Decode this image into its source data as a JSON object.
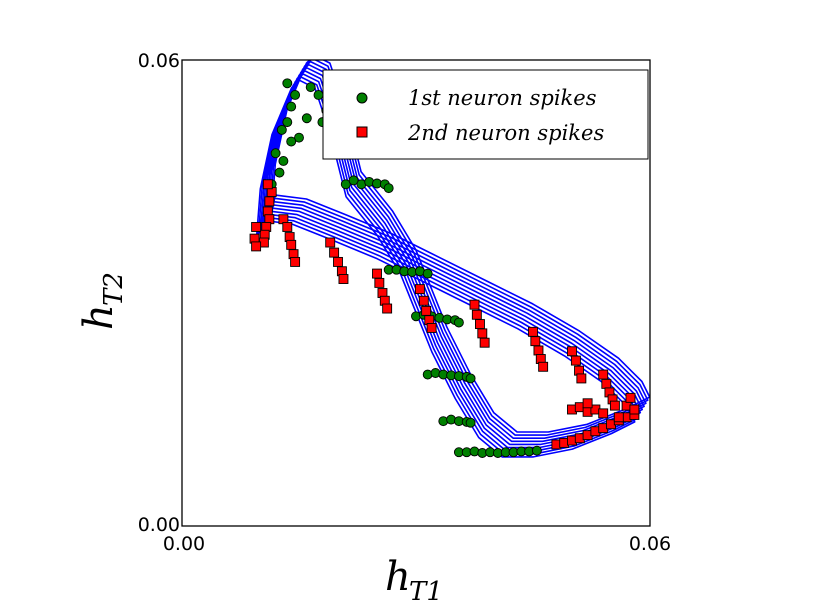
{
  "chart_data": {
    "type": "line",
    "xlabel": {
      "main": "h",
      "sub": "T1"
    },
    "ylabel": {
      "main": "h",
      "sub": "T2"
    },
    "xlim": [
      0.0,
      0.06
    ],
    "ylim": [
      0.0,
      0.06
    ],
    "x_ticks": [
      "0.00",
      "0.06"
    ],
    "y_ticks": [
      "0.00",
      "0.06"
    ],
    "grid": false,
    "legend_position": "top-right",
    "trajectory": {
      "color": "#0000ff",
      "description": "dense bundle of overlapping closed orbits",
      "loop": [
        [
          0.0105,
          0.0385
        ],
        [
          0.011,
          0.045
        ],
        [
          0.0125,
          0.052
        ],
        [
          0.015,
          0.058
        ],
        [
          0.016,
          0.059
        ],
        [
          0.018,
          0.058
        ],
        [
          0.02,
          0.052
        ],
        [
          0.022,
          0.044
        ],
        [
          0.026,
          0.039
        ],
        [
          0.029,
          0.034
        ],
        [
          0.031,
          0.029
        ],
        [
          0.033,
          0.024
        ],
        [
          0.036,
          0.018
        ],
        [
          0.039,
          0.013
        ],
        [
          0.042,
          0.0105
        ],
        [
          0.046,
          0.0105
        ],
        [
          0.051,
          0.0115
        ],
        [
          0.056,
          0.0135
        ],
        [
          0.059,
          0.015
        ],
        [
          0.058,
          0.017
        ],
        [
          0.055,
          0.02
        ],
        [
          0.05,
          0.0235
        ],
        [
          0.044,
          0.027
        ],
        [
          0.038,
          0.03
        ],
        [
          0.032,
          0.033
        ],
        [
          0.026,
          0.036
        ],
        [
          0.02,
          0.0385
        ],
        [
          0.015,
          0.0405
        ],
        [
          0.011,
          0.041
        ],
        [
          0.0105,
          0.0385
        ]
      ],
      "band_offsets": [
        -0.0016,
        -0.0012,
        -0.0008,
        -0.0004,
        0.0,
        0.0004,
        0.0008,
        0.0012,
        0.0016
      ]
    },
    "series": [
      {
        "name": "1st neuron spikes",
        "marker": "circle",
        "color": "#008000",
        "points": [
          [
            0.0135,
            0.057
          ],
          [
            0.014,
            0.054
          ],
          [
            0.0135,
            0.052
          ],
          [
            0.015,
            0.05
          ],
          [
            0.013,
            0.047
          ],
          [
            0.014,
            0.0495
          ],
          [
            0.016,
            0.0525
          ],
          [
            0.0175,
            0.0555
          ],
          [
            0.0185,
            0.0535
          ],
          [
            0.02,
            0.05
          ],
          [
            0.0205,
            0.0485
          ],
          [
            0.019,
            0.0545
          ],
          [
            0.0165,
            0.0565
          ],
          [
            0.0145,
            0.0555
          ],
          [
            0.0125,
            0.0455
          ],
          [
            0.0115,
            0.044
          ],
          [
            0.012,
            0.048
          ],
          [
            0.0128,
            0.051
          ],
          [
            0.021,
            0.049
          ],
          [
            0.0215,
            0.0478
          ],
          [
            0.0205,
            0.0515
          ],
          [
            0.018,
            0.052
          ],
          [
            0.021,
            0.044
          ],
          [
            0.022,
            0.0445
          ],
          [
            0.023,
            0.044
          ],
          [
            0.024,
            0.0443
          ],
          [
            0.025,
            0.0441
          ],
          [
            0.026,
            0.044
          ],
          [
            0.0265,
            0.0435
          ],
          [
            0.0265,
            0.033
          ],
          [
            0.0275,
            0.033
          ],
          [
            0.0285,
            0.0328
          ],
          [
            0.0295,
            0.0327
          ],
          [
            0.0305,
            0.0328
          ],
          [
            0.0315,
            0.0325
          ],
          [
            0.03,
            0.027
          ],
          [
            0.031,
            0.0272
          ],
          [
            0.032,
            0.027
          ],
          [
            0.033,
            0.0268
          ],
          [
            0.034,
            0.0266
          ],
          [
            0.035,
            0.0265
          ],
          [
            0.0355,
            0.0262
          ],
          [
            0.0315,
            0.0195
          ],
          [
            0.0325,
            0.0197
          ],
          [
            0.0335,
            0.0195
          ],
          [
            0.0345,
            0.0194
          ],
          [
            0.0355,
            0.0193
          ],
          [
            0.0365,
            0.0192
          ],
          [
            0.037,
            0.019
          ],
          [
            0.0335,
            0.0135
          ],
          [
            0.0345,
            0.0137
          ],
          [
            0.0355,
            0.0135
          ],
          [
            0.0365,
            0.0134
          ],
          [
            0.037,
            0.0133
          ],
          [
            0.0355,
            0.0095
          ],
          [
            0.0365,
            0.0095
          ],
          [
            0.0375,
            0.0096
          ],
          [
            0.0385,
            0.0094
          ],
          [
            0.0395,
            0.0095
          ],
          [
            0.0405,
            0.0094
          ],
          [
            0.0415,
            0.0095
          ],
          [
            0.0425,
            0.0095
          ],
          [
            0.0435,
            0.0096
          ],
          [
            0.0445,
            0.0096
          ],
          [
            0.0455,
            0.0097
          ]
        ]
      },
      {
        "name": "2nd neuron spikes",
        "marker": "square",
        "color": "#ff0000",
        "points": [
          [
            0.0115,
            0.043
          ],
          [
            0.0112,
            0.0418
          ],
          [
            0.011,
            0.0405
          ],
          [
            0.0112,
            0.0395
          ],
          [
            0.0108,
            0.0385
          ],
          [
            0.0106,
            0.0375
          ],
          [
            0.0105,
            0.0365
          ],
          [
            0.011,
            0.044
          ],
          [
            0.0095,
            0.0385
          ],
          [
            0.0093,
            0.037
          ],
          [
            0.0095,
            0.036
          ],
          [
            0.013,
            0.0395
          ],
          [
            0.0135,
            0.0385
          ],
          [
            0.0138,
            0.0372
          ],
          [
            0.014,
            0.0362
          ],
          [
            0.0143,
            0.035
          ],
          [
            0.0145,
            0.034
          ],
          [
            0.019,
            0.0365
          ],
          [
            0.0195,
            0.0352
          ],
          [
            0.02,
            0.034
          ],
          [
            0.0205,
            0.0328
          ],
          [
            0.0207,
            0.0318
          ],
          [
            0.025,
            0.0325
          ],
          [
            0.0253,
            0.0313
          ],
          [
            0.0257,
            0.03
          ],
          [
            0.026,
            0.029
          ],
          [
            0.0263,
            0.028
          ],
          [
            0.0305,
            0.0305
          ],
          [
            0.031,
            0.029
          ],
          [
            0.0313,
            0.0277
          ],
          [
            0.0317,
            0.0265
          ],
          [
            0.032,
            0.0255
          ],
          [
            0.0375,
            0.0285
          ],
          [
            0.0378,
            0.0272
          ],
          [
            0.0382,
            0.026
          ],
          [
            0.0385,
            0.0248
          ],
          [
            0.0388,
            0.0236
          ],
          [
            0.045,
            0.025
          ],
          [
            0.0453,
            0.0238
          ],
          [
            0.0457,
            0.0226
          ],
          [
            0.046,
            0.0215
          ],
          [
            0.0463,
            0.0205
          ],
          [
            0.05,
            0.0225
          ],
          [
            0.0505,
            0.0213
          ],
          [
            0.0509,
            0.02
          ],
          [
            0.0512,
            0.019
          ],
          [
            0.054,
            0.0195
          ],
          [
            0.0544,
            0.0183
          ],
          [
            0.0548,
            0.0172
          ],
          [
            0.0552,
            0.0163
          ],
          [
            0.0555,
            0.0155
          ],
          [
            0.048,
            0.0105
          ],
          [
            0.049,
            0.0107
          ],
          [
            0.05,
            0.011
          ],
          [
            0.051,
            0.0113
          ],
          [
            0.052,
            0.0117
          ],
          [
            0.053,
            0.0122
          ],
          [
            0.054,
            0.0126
          ],
          [
            0.055,
            0.0131
          ],
          [
            0.056,
            0.0136
          ],
          [
            0.057,
            0.014
          ],
          [
            0.058,
            0.0143
          ],
          [
            0.05,
            0.015
          ],
          [
            0.051,
            0.0153
          ],
          [
            0.052,
            0.0147
          ],
          [
            0.053,
            0.015
          ],
          [
            0.054,
            0.0145
          ],
          [
            0.052,
            0.0158
          ],
          [
            0.056,
            0.014
          ],
          [
            0.057,
            0.0155
          ],
          [
            0.0575,
            0.0165
          ],
          [
            0.058,
            0.015
          ]
        ]
      }
    ]
  }
}
